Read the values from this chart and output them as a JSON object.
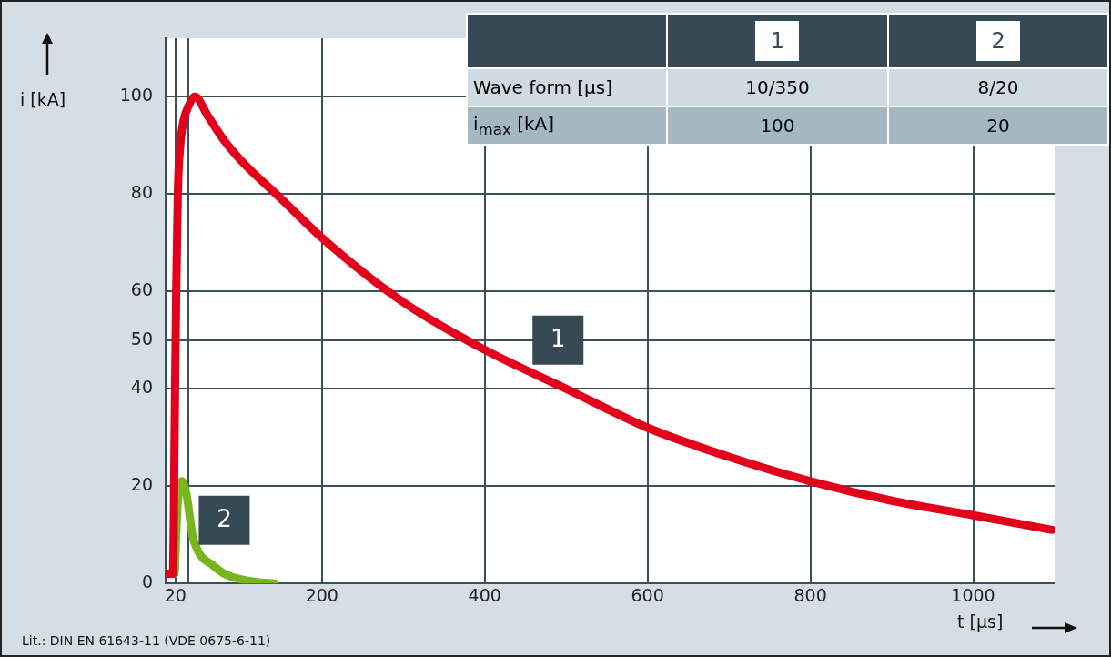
{
  "chart_data": {
    "type": "line",
    "xlabel": "t [µs]",
    "ylabel": "i [kA]",
    "xlim": [
      8,
      1100
    ],
    "ylim": [
      0,
      112
    ],
    "xticks": [
      20,
      {
        "value": 36,
        "label": null
      },
      200,
      400,
      600,
      800,
      1000
    ],
    "yticks": [
      0,
      20,
      40,
      50,
      60,
      80,
      100
    ],
    "grid": true,
    "legend": false,
    "marker": "none",
    "line_style": "solid",
    "series": [
      {
        "name": "1",
        "color": "#e3001b",
        "x": [
          8,
          17,
          19,
          21,
          23,
          26,
          30,
          36,
          44,
          60,
          80,
          100,
          150,
          200,
          298,
          400,
          500,
          600,
          700,
          800,
          900,
          1000,
          1097
        ],
        "values": [
          2,
          2,
          30,
          60,
          80,
          90,
          95,
          98,
          100,
          96,
          91,
          87,
          79,
          71,
          58,
          48,
          40,
          32,
          26,
          21,
          17,
          14,
          11
        ]
      },
      {
        "name": "2",
        "color": "#7ab51d",
        "x": [
          8,
          19,
          21,
          23,
          26,
          28,
          31,
          34,
          41,
          50,
          64,
          80,
          97,
          120,
          142
        ],
        "values": [
          2,
          2,
          10,
          17,
          20,
          21,
          20,
          18,
          10,
          6,
          4,
          2,
          1,
          0.3,
          0
        ]
      }
    ],
    "annotations": [
      "Wave form [µs]",
      "10/350",
      "8/20",
      "i$_{max}$ [kA]",
      "100",
      "20",
      "Lit.: DIN EN 61643-11 (VDE 0675-6-11)"
    ]
  }
}
